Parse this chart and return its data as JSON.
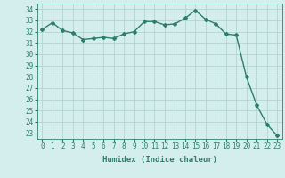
{
  "x": [
    0,
    1,
    2,
    3,
    4,
    5,
    6,
    7,
    8,
    9,
    10,
    11,
    12,
    13,
    14,
    15,
    16,
    17,
    18,
    19,
    20,
    21,
    22,
    23
  ],
  "y": [
    32.2,
    32.8,
    32.1,
    31.9,
    31.3,
    31.4,
    31.5,
    31.4,
    31.8,
    32.0,
    32.9,
    32.9,
    32.6,
    32.7,
    33.2,
    33.9,
    33.1,
    32.7,
    31.8,
    31.7,
    28.0,
    25.5,
    23.8,
    22.8
  ],
  "line_color": "#2e7d6e",
  "marker": "D",
  "marker_size": 2.0,
  "linewidth": 1.0,
  "bg_color": "#d4eeee",
  "grid_color": "#b0cece",
  "xlabel": "Humidex (Indice chaleur)",
  "ylim": [
    22.5,
    34.5
  ],
  "xlim": [
    -0.5,
    23.5
  ],
  "yticks": [
    23,
    24,
    25,
    26,
    27,
    28,
    29,
    30,
    31,
    32,
    33,
    34
  ],
  "xticks": [
    0,
    1,
    2,
    3,
    4,
    5,
    6,
    7,
    8,
    9,
    10,
    11,
    12,
    13,
    14,
    15,
    16,
    17,
    18,
    19,
    20,
    21,
    22,
    23
  ],
  "title_color": "#2e7d6e",
  "label_fontsize": 6.5,
  "tick_fontsize": 5.5
}
